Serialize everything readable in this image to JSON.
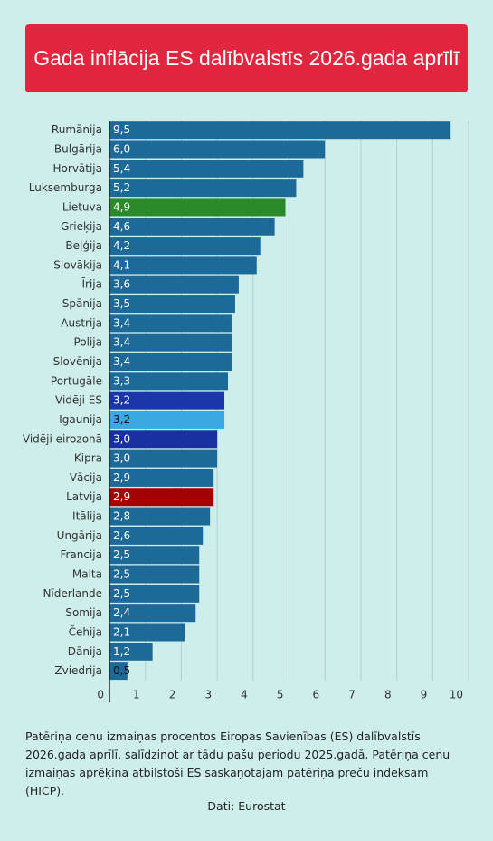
{
  "chart_data": {
    "type": "bar",
    "orientation": "horizontal",
    "title": "Gada inflācija ES dalībvalstīs 2026.gada aprīlī",
    "categories": [
      "Rumānija",
      "Bulgārija",
      "Horvātija",
      "Luksemburga",
      "Lietuva",
      "Grieķija",
      "Beļģija",
      "Slovākija",
      "Īrija",
      "Spānija",
      "Austrija",
      "Polija",
      "Slovēnija",
      "Portugāle",
      "Vidēji ES",
      "Igaunija",
      "Vidēji eirozonā",
      "Kipra",
      "Vācija",
      "Latvija",
      "Itālija",
      "Ungārija",
      "Francija",
      "Malta",
      "Nīderlande",
      "Somija",
      "Čehija",
      "Dānija",
      "Zviedrija"
    ],
    "values": [
      9.5,
      6.0,
      5.4,
      5.2,
      4.9,
      4.6,
      4.2,
      4.1,
      3.6,
      3.5,
      3.4,
      3.4,
      3.4,
      3.3,
      3.2,
      3.2,
      3.0,
      3.0,
      2.9,
      2.9,
      2.8,
      2.6,
      2.5,
      2.5,
      2.5,
      2.4,
      2.1,
      1.2,
      0.5
    ],
    "value_labels": [
      "9,5",
      "6,0",
      "5,4",
      "5,2",
      "4,9",
      "4,6",
      "4,2",
      "4,1",
      "3,6",
      "3,5",
      "3,4",
      "3,4",
      "3,4",
      "3,3",
      "3,2",
      "3,2",
      "3,0",
      "3,0",
      "2,9",
      "2,9",
      "2,8",
      "2,6",
      "2,5",
      "2,5",
      "2,5",
      "2,4",
      "2,1",
      "1,2",
      "0,5"
    ],
    "colors": [
      "#1d6a99",
      "#1d6a99",
      "#1d6a99",
      "#1d6a99",
      "#2a8a2a",
      "#1d6a99",
      "#1d6a99",
      "#1d6a99",
      "#1d6a99",
      "#1d6a99",
      "#1d6a99",
      "#1d6a99",
      "#1d6a99",
      "#1d6a99",
      "#1a36a8",
      "#3aa9e2",
      "#1a2fa0",
      "#1d6a99",
      "#1d6a99",
      "#a30000",
      "#1d6a99",
      "#1d6a99",
      "#1d6a99",
      "#1d6a99",
      "#1d6a99",
      "#1d6a99",
      "#1d6a99",
      "#1d6a99",
      "#1d6a99"
    ],
    "xlim": [
      0,
      10
    ],
    "xticks": [
      0,
      1,
      2,
      3,
      4,
      5,
      6,
      7,
      8,
      9,
      10
    ],
    "grid": true,
    "note": "Patēriņa cenu izmaiņas procentos Eiropas Savienības (ES) dalībvalstīs 2026.gada aprīlī, salīdzinot ar tādu pašu periodu 2025.gadā. Patēriņa cenu izmaiņas aprēķina atbilstoši ES saskaņotajam patēriņa preču indeksam (HICP).",
    "source": "Dati: Eurostat"
  }
}
